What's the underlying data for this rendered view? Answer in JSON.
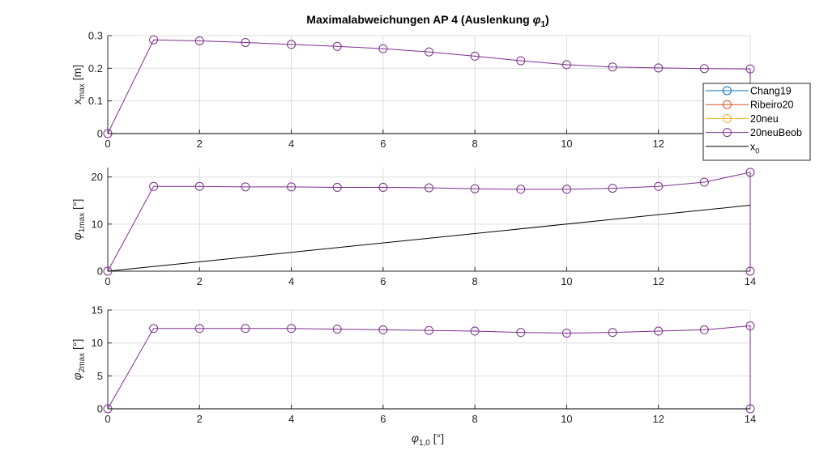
{
  "title_main": "Maximalabweichungen AP 4 (Auslenkung ",
  "title_sym": "φ",
  "title_sub": "1",
  "title_end": ")",
  "colors": {
    "Chang19": "#0072BD",
    "Ribeiro20": "#D95319",
    "20neu": "#EDB120",
    "20neuBeob": "#7E2F8E",
    "x0": "#000000",
    "grid": "#dcdcdc",
    "axis": "#262626"
  },
  "legend": [
    {
      "label": "Chang19",
      "key": "Chang19",
      "marker": "circle"
    },
    {
      "label": "Ribeiro20",
      "key": "Ribeiro20",
      "marker": "circle"
    },
    {
      "label": "20neu",
      "key": "20neu",
      "marker": "circle"
    },
    {
      "label": "20neuBeob",
      "key": "20neuBeob",
      "marker": "circle"
    },
    {
      "label": "x",
      "sub": "0",
      "key": "x0",
      "marker": "none"
    }
  ],
  "xlabel": {
    "sym": "φ",
    "sub": "1,0",
    "unit": " [°]"
  },
  "chart_data": [
    {
      "type": "line",
      "ylabel": {
        "main": "x",
        "sub": "max",
        "unit": " [m]"
      },
      "xlim": [
        0,
        14
      ],
      "ylim": [
        0,
        0.3
      ],
      "yticks": [
        0,
        0.1,
        0.2,
        0.3
      ],
      "yticklabels": [
        "0",
        "0.1",
        "0.2",
        "0.3"
      ],
      "xticks": [
        0,
        2,
        4,
        6,
        8,
        10,
        12,
        14
      ],
      "xticklabels": [
        "0",
        "2",
        "4",
        "6",
        "8",
        "10",
        "12",
        "14"
      ],
      "grid": true,
      "legend": "right",
      "x": [
        0,
        1,
        2,
        3,
        4,
        5,
        6,
        7,
        8,
        9,
        10,
        11,
        12,
        13,
        14,
        14
      ],
      "series": [
        {
          "name": "20neuBeob",
          "values": [
            0,
            0.287,
            0.284,
            0.279,
            0.273,
            0.267,
            0.26,
            0.25,
            0.237,
            0.223,
            0.211,
            0.204,
            0.201,
            0.199,
            0.198,
            0
          ]
        },
        {
          "name": "x0",
          "x": [
            0,
            14
          ],
          "values": [
            0,
            0
          ],
          "marker": "none"
        }
      ]
    },
    {
      "type": "line",
      "ylabel": {
        "sym": "φ",
        "sub": "1max",
        "unit": " [°]"
      },
      "xlim": [
        0,
        14
      ],
      "ylim": [
        0,
        22
      ],
      "yticks": [
        0,
        10,
        20
      ],
      "yticklabels": [
        "0",
        "10",
        "20"
      ],
      "xticks": [
        0,
        2,
        4,
        6,
        8,
        10,
        12,
        14
      ],
      "xticklabels": [
        "0",
        "2",
        "4",
        "6",
        "8",
        "10",
        "12",
        "14"
      ],
      "grid": true,
      "x": [
        0,
        1,
        2,
        3,
        4,
        5,
        6,
        7,
        8,
        9,
        10,
        11,
        12,
        13,
        14,
        14
      ],
      "series": [
        {
          "name": "20neuBeob",
          "values": [
            0,
            18.0,
            18.0,
            17.9,
            17.9,
            17.8,
            17.8,
            17.7,
            17.5,
            17.4,
            17.4,
            17.6,
            18.0,
            18.9,
            21.0,
            0
          ]
        },
        {
          "name": "x0",
          "x": [
            0,
            14
          ],
          "values": [
            0,
            14
          ],
          "marker": "none"
        }
      ]
    },
    {
      "type": "line",
      "ylabel": {
        "sym": "φ",
        "sub": "2max",
        "unit": " [°]"
      },
      "xlim": [
        0,
        14
      ],
      "ylim": [
        0,
        15
      ],
      "yticks": [
        0,
        5,
        10,
        15
      ],
      "yticklabels": [
        "0",
        "5",
        "10",
        "15"
      ],
      "xticks": [
        0,
        2,
        4,
        6,
        8,
        10,
        12,
        14
      ],
      "xticklabels": [
        "0",
        "2",
        "4",
        "6",
        "8",
        "10",
        "12",
        "14"
      ],
      "grid": true,
      "x": [
        0,
        1,
        2,
        3,
        4,
        5,
        6,
        7,
        8,
        9,
        10,
        11,
        12,
        13,
        14,
        14
      ],
      "series": [
        {
          "name": "20neuBeob",
          "values": [
            0,
            12.2,
            12.2,
            12.2,
            12.2,
            12.1,
            12.0,
            11.9,
            11.8,
            11.6,
            11.5,
            11.6,
            11.8,
            12.0,
            12.6,
            0
          ]
        },
        {
          "name": "x0",
          "x": [
            0,
            14
          ],
          "values": [
            0,
            0
          ],
          "marker": "none"
        }
      ]
    }
  ]
}
